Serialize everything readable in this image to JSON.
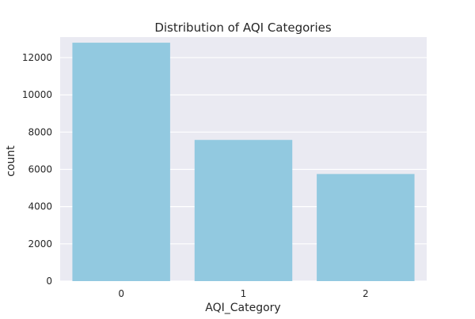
{
  "chart_data": {
    "type": "bar",
    "title": "Distribution of AQI Categories",
    "xlabel": "AQI_Category",
    "ylabel": "count",
    "categories": [
      "0",
      "1",
      "2"
    ],
    "values": [
      12800,
      7580,
      5750
    ],
    "ylim": [
      0,
      13100
    ],
    "yticks": [
      0,
      2000,
      4000,
      6000,
      8000,
      10000,
      12000
    ],
    "grid": true,
    "colors": {
      "bar": "#92c9e0",
      "plot_background": "#eaeaf2",
      "grid": "#ffffff"
    }
  }
}
